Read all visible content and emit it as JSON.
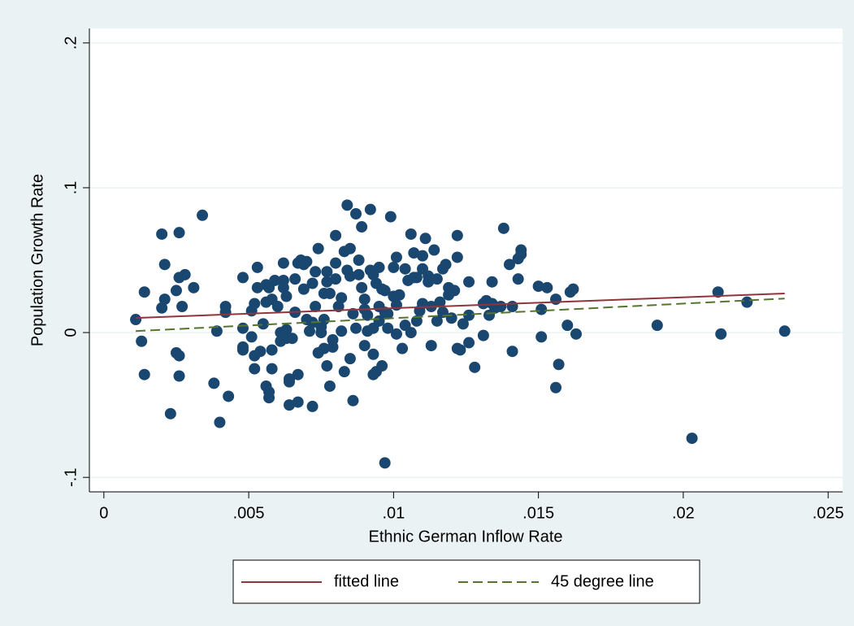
{
  "chart_data": {
    "type": "scatter",
    "xlabel": "Ethnic German Inflow Rate",
    "ylabel": "Population Growth Rate",
    "xlim": [
      -0.0005,
      0.0255
    ],
    "ylim": [
      -0.11,
      0.21
    ],
    "xticks": [
      0,
      {
        "value": 0.005,
        "label": ".005"
      },
      {
        "value": 0.01,
        "label": ".01"
      },
      {
        "value": 0.015,
        "label": ".015"
      },
      {
        "value": 0.02,
        "label": ".02"
      },
      {
        "value": 0.025,
        "label": ".025"
      }
    ],
    "yticks": [
      {
        "value": -0.1,
        "label": "-.1"
      },
      0,
      {
        "value": 0.1,
        "label": ".1"
      },
      {
        "value": 0.2,
        "label": ".2"
      }
    ],
    "grid": true,
    "marker_color": "#1a476f",
    "x": [
      0.0011,
      0.0014,
      0.0013,
      0.0014,
      0.002,
      0.0021,
      0.0021,
      0.002,
      0.0023,
      0.0025,
      0.0025,
      0.0026,
      0.0026,
      0.0026,
      0.0026,
      0.0027,
      0.0028,
      0.0031,
      0.0034,
      0.0038,
      0.0039,
      0.004,
      0.0042,
      0.0042,
      0.0043,
      0.0048,
      0.0048,
      0.0048,
      0.0048,
      0.0051,
      0.0051,
      0.0052,
      0.0052,
      0.0052,
      0.0053,
      0.0053,
      0.0054,
      0.0055,
      0.0056,
      0.0056,
      0.0056,
      0.0057,
      0.0057,
      0.0057,
      0.0058,
      0.0058,
      0.0058,
      0.0059,
      0.006,
      0.0061,
      0.0061,
      0.0062,
      0.0062,
      0.0062,
      0.0063,
      0.0063,
      0.0063,
      0.0064,
      0.0064,
      0.0064,
      0.0065,
      0.0066,
      0.0066,
      0.0067,
      0.0067,
      0.0067,
      0.0068,
      0.0069,
      0.0069,
      0.007,
      0.007,
      0.0071,
      0.0072,
      0.0072,
      0.0072,
      0.0073,
      0.0073,
      0.0074,
      0.0074,
      0.0075,
      0.0075,
      0.0076,
      0.0076,
      0.0076,
      0.0077,
      0.0077,
      0.0077,
      0.0078,
      0.0078,
      0.0079,
      0.0079,
      0.008,
      0.008,
      0.008,
      0.0081,
      0.0082,
      0.0082,
      0.0083,
      0.0083,
      0.0084,
      0.0084,
      0.0085,
      0.0085,
      0.0085,
      0.0086,
      0.0086,
      0.0087,
      0.0087,
      0.0088,
      0.0088,
      0.0089,
      0.0089,
      0.009,
      0.009,
      0.009,
      0.0091,
      0.0091,
      0.0092,
      0.0092,
      0.0093,
      0.0093,
      0.0093,
      0.0093,
      0.0094,
      0.0094,
      0.0095,
      0.0095,
      0.0095,
      0.0096,
      0.0096,
      0.0097,
      0.0097,
      0.0097,
      0.0098,
      0.0098,
      0.0099,
      0.01,
      0.01,
      0.0101,
      0.0101,
      0.0101,
      0.0102,
      0.0103,
      0.0104,
      0.0104,
      0.0105,
      0.0106,
      0.0106,
      0.0107,
      0.0107,
      0.0108,
      0.0108,
      0.0109,
      0.011,
      0.011,
      0.011,
      0.0111,
      0.0112,
      0.0112,
      0.0113,
      0.0113,
      0.0114,
      0.0115,
      0.0115,
      0.0116,
      0.0117,
      0.0117,
      0.0118,
      0.0119,
      0.0119,
      0.012,
      0.0121,
      0.0122,
      0.0122,
      0.0122,
      0.0123,
      0.0124,
      0.0126,
      0.0126,
      0.0126,
      0.0128,
      0.0131,
      0.0131,
      0.0132,
      0.0133,
      0.0134,
      0.0134,
      0.0135,
      0.0137,
      0.0138,
      0.014,
      0.0141,
      0.0141,
      0.0143,
      0.0143,
      0.0144,
      0.0144,
      0.015,
      0.0151,
      0.0151,
      0.0153,
      0.0156,
      0.0156,
      0.0157,
      0.016,
      0.0161,
      0.0162,
      0.0163,
      0.0191,
      0.0203,
      0.0212,
      0.0213,
      0.0222,
      0.0235
    ],
    "y": [
      0.009,
      0.028,
      -0.006,
      -0.029,
      0.068,
      0.023,
      0.047,
      0.017,
      -0.056,
      0.029,
      -0.014,
      0.069,
      0.038,
      -0.016,
      -0.03,
      0.018,
      0.04,
      0.031,
      0.081,
      -0.035,
      0.001,
      -0.062,
      0.018,
      0.014,
      -0.044,
      0.038,
      -0.01,
      -0.012,
      0.003,
      0.015,
      -0.003,
      0.02,
      -0.016,
      -0.025,
      0.031,
      0.045,
      -0.013,
      0.006,
      0.033,
      0.021,
      -0.037,
      -0.045,
      -0.041,
      0.031,
      0.023,
      -0.012,
      -0.025,
      0.036,
      0.018,
      0.0,
      -0.006,
      0.048,
      0.031,
      0.036,
      0.002,
      -0.004,
      0.025,
      -0.032,
      -0.034,
      -0.05,
      -0.004,
      0.037,
      0.014,
      0.048,
      -0.029,
      -0.048,
      0.05,
      0.047,
      0.03,
      0.009,
      0.049,
      0.001,
      0.034,
      0.007,
      -0.051,
      0.042,
      0.018,
      0.058,
      -0.014,
      0.0,
      0.004,
      0.027,
      0.009,
      -0.011,
      0.042,
      0.035,
      -0.023,
      -0.037,
      0.027,
      -0.01,
      -0.005,
      0.067,
      0.048,
      0.037,
      0.018,
      0.001,
      0.024,
      0.056,
      -0.027,
      0.088,
      0.043,
      0.058,
      0.039,
      -0.018,
      0.013,
      -0.047,
      0.082,
      0.003,
      0.05,
      0.04,
      0.073,
      0.031,
      0.023,
      0.016,
      -0.009,
      0.001,
      0.012,
      0.085,
      0.043,
      0.04,
      0.003,
      -0.015,
      -0.029,
      0.034,
      -0.027,
      0.045,
      0.018,
      0.008,
      -0.023,
      0.03,
      0.014,
      -0.09,
      0.029,
      0.013,
      0.003,
      0.08,
      0.045,
      0.025,
      0.052,
      0.019,
      -0.001,
      0.026,
      -0.011,
      0.044,
      0.005,
      0.036,
      0.068,
      0.0,
      0.055,
      0.038,
      0.008,
      0.038,
      0.015,
      0.053,
      0.044,
      0.02,
      0.065,
      0.039,
      0.035,
      0.018,
      -0.009,
      0.057,
      0.037,
      0.008,
      0.021,
      0.014,
      0.044,
      0.047,
      0.031,
      0.026,
      0.01,
      0.029,
      0.067,
      0.052,
      -0.011,
      -0.012,
      0.006,
      0.035,
      -0.007,
      0.012,
      -0.024,
      -0.002,
      0.02,
      0.022,
      0.012,
      0.02,
      0.035,
      0.017,
      0.018,
      0.072,
      0.047,
      0.018,
      -0.013,
      0.051,
      0.037,
      0.054,
      0.057,
      0.032,
      -0.003,
      0.016,
      0.031,
      0.023,
      -0.038,
      -0.022,
      0.005,
      0.028,
      0.03,
      -0.001,
      0.005,
      -0.073,
      0.028,
      -0.001,
      0.021,
      0.001
    ],
    "lines": [
      {
        "name": "fitted line",
        "color": "#90353b",
        "dash": false,
        "x": [
          0.0011,
          0.0235
        ],
        "y": [
          0.0101,
          0.027
        ]
      },
      {
        "name": "45 degree line",
        "color": "#55752f",
        "dash": true,
        "x": [
          0.0011,
          0.0235
        ],
        "y": [
          0.001,
          0.0235
        ]
      }
    ]
  }
}
